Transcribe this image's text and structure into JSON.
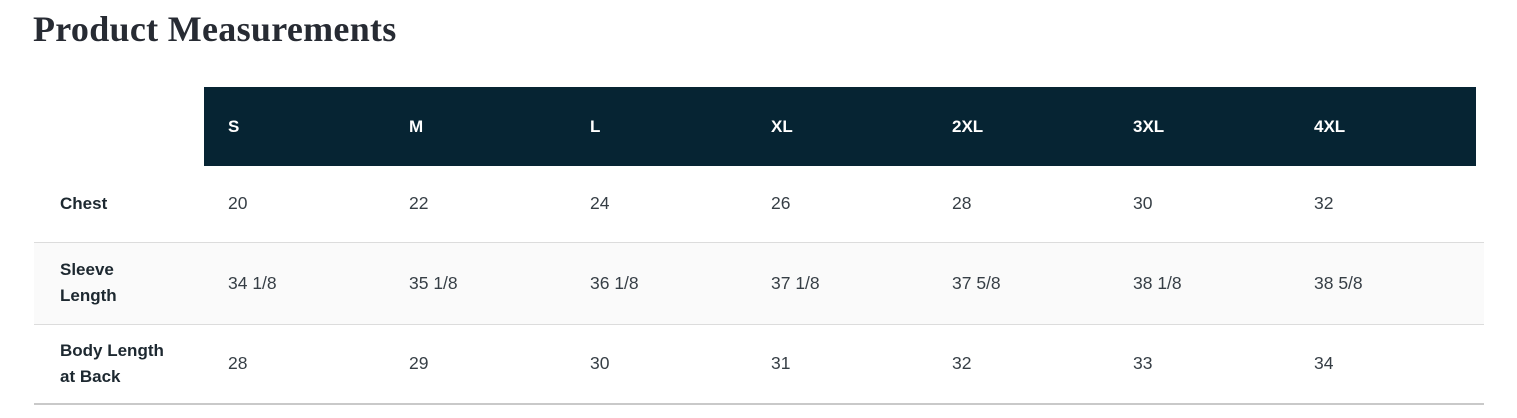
{
  "title": "Product Measurements",
  "table": {
    "size_headers": [
      "S",
      "M",
      "L",
      "XL",
      "2XL",
      "3XL",
      "4XL"
    ],
    "rows": [
      {
        "label": "Chest",
        "values": [
          "20",
          "22",
          "24",
          "26",
          "28",
          "30",
          "32"
        ]
      },
      {
        "label": "Sleeve Length",
        "values": [
          "34 1/8",
          "35 1/8",
          "36 1/8",
          "37 1/8",
          "37 5/8",
          "38 1/8",
          "38 5/8"
        ]
      },
      {
        "label": "Body Length at Back",
        "values": [
          "28",
          "29",
          "30",
          "31",
          "32",
          "33",
          "34"
        ]
      }
    ]
  },
  "colors": {
    "header_bg": "#062433",
    "header_text": "#ffffff",
    "row_alt_bg": "#fafafa",
    "divider": "#dcdcdc",
    "bottom_border": "#c9c9c9",
    "title_color": "#272b33",
    "label_color": "#1d2830",
    "value_color": "#363e45"
  }
}
